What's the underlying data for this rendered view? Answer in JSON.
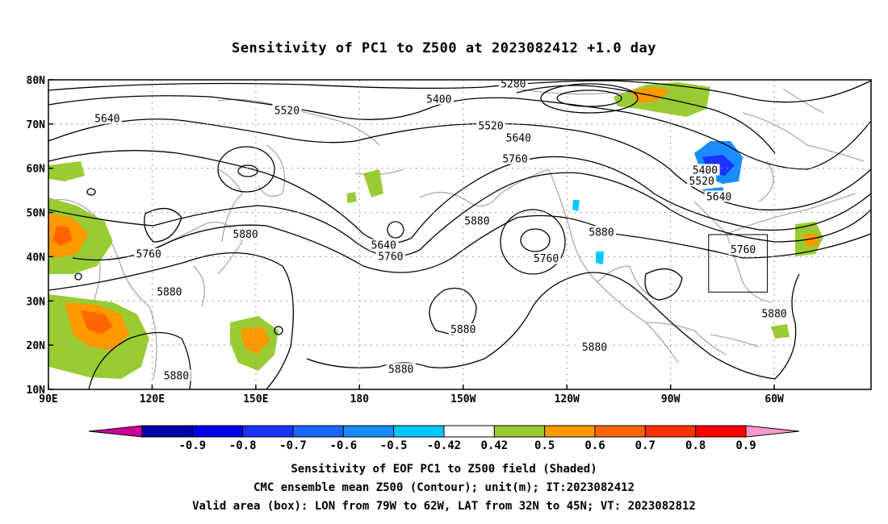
{
  "title": "Sensitivity of PC1 to Z500 at 2023082412 +1.0 day",
  "lat_ticks": [
    "80N",
    "70N",
    "60N",
    "50N",
    "40N",
    "30N",
    "20N",
    "10N"
  ],
  "lon_ticks": [
    "90E",
    "120E",
    "150E",
    "180",
    "150W",
    "120W",
    "90W",
    "60W"
  ],
  "contour_labels": [
    {
      "text": "5280",
      "lon": -135.5,
      "lat": 79.0
    },
    {
      "text": "5400",
      "lon": -157,
      "lat": 75.5
    },
    {
      "text": "5520",
      "lon": 159,
      "lat": 73.0
    },
    {
      "text": "5640",
      "lon": 107,
      "lat": 71.2
    },
    {
      "text": "5520",
      "lon": -142,
      "lat": 69.5
    },
    {
      "text": "5640",
      "lon": -134,
      "lat": 66.8
    },
    {
      "text": "5760",
      "lon": -135,
      "lat": 62.0
    },
    {
      "text": "5400",
      "lon": -80,
      "lat": 59.5
    },
    {
      "text": "5520",
      "lon": -81,
      "lat": 57.0
    },
    {
      "text": "5640",
      "lon": -76,
      "lat": 53.5
    },
    {
      "text": "5880",
      "lon": -146,
      "lat": 48.0
    },
    {
      "text": "5880",
      "lon": -110,
      "lat": 45.5
    },
    {
      "text": "5880",
      "lon": 147,
      "lat": 45.0
    },
    {
      "text": "5640",
      "lon": -173,
      "lat": 42.5
    },
    {
      "text": "5760",
      "lon": -171,
      "lat": 40.0
    },
    {
      "text": "5760",
      "lon": -126,
      "lat": 39.5
    },
    {
      "text": "5760",
      "lon": -69,
      "lat": 41.5
    },
    {
      "text": "5760",
      "lon": 119,
      "lat": 40.5
    },
    {
      "text": "5880",
      "lon": 125,
      "lat": 32.0
    },
    {
      "text": "5880",
      "lon": -150,
      "lat": 23.5
    },
    {
      "text": "5880",
      "lon": -112,
      "lat": 19.5
    },
    {
      "text": "5880",
      "lon": -60,
      "lat": 27.0
    },
    {
      "text": "5880",
      "lon": -168,
      "lat": 14.5
    },
    {
      "text": "5880",
      "lon": 127,
      "lat": 13.0
    }
  ],
  "colorbar": {
    "labels": [
      "-0.9",
      "-0.8",
      "-0.7",
      "-0.6",
      "-0.5",
      "-0.42",
      "0.42",
      "0.5",
      "0.6",
      "0.7",
      "0.8",
      "0.9"
    ],
    "colors": [
      "#cc0099",
      "#0000aa",
      "#0000e6",
      "#1a33ff",
      "#1a66ff",
      "#1a8cff",
      "#00c8ff",
      "#ffffff",
      "#99cc33",
      "#ff9900",
      "#ff6600",
      "#ff3300",
      "#ff0000",
      "#ff99cc"
    ]
  },
  "valid_box": {
    "lon_min": -79,
    "lon_max": -62,
    "lat_min": 32,
    "lat_max": 45
  },
  "caption_line1": "Sensitivity of EOF PC1 to Z500 field (Shaded)",
  "caption_line2": "CMC ensemble mean Z500 (Contour); unit(m); IT:2023082412",
  "caption_line3": "Valid area (box): LON from 79W to 62W, LAT from 32N to 45N; VT: 2023082812"
}
